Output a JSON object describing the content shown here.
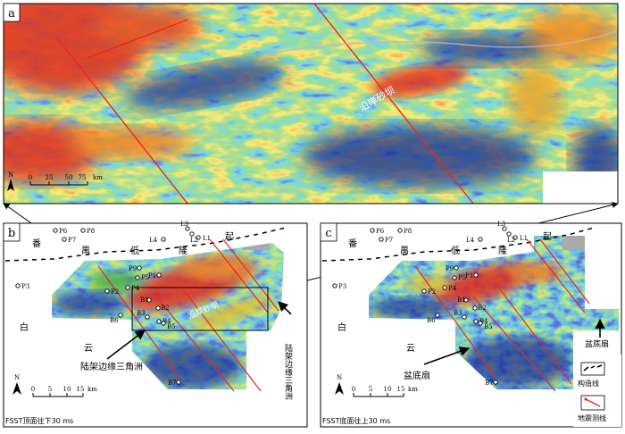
{
  "panel_a": {
    "label": "a",
    "scale": {
      "ticks": [
        "0",
        "25",
        "50",
        "75"
      ],
      "unit": "km"
    },
    "north": "N",
    "channel_label": "沿岸砂坝"
  },
  "panel_b": {
    "label": "b",
    "wells": [
      "P6",
      "P8",
      "P7",
      "P3",
      "P9",
      "P5",
      "P1",
      "P2",
      "P4",
      "B1",
      "B2",
      "B6",
      "B3",
      "B4",
      "B5",
      "B7",
      "L1",
      "L2",
      "L3",
      "L4"
    ],
    "region_chars": [
      "番",
      "禺",
      "低",
      "隆",
      "起",
      "白",
      "云"
    ],
    "annot_delta_left": "陆架边缘三角洲",
    "annot_delta_right": "陆架边缘三角洲",
    "channel_label": "沿岸砂坝",
    "scale": {
      "ticks": [
        "0",
        "5",
        "10",
        "15"
      ],
      "unit": "km"
    },
    "north": "N",
    "caption": "FSST顶面往下30 ms"
  },
  "panel_c": {
    "label": "c",
    "wells": [
      "P6",
      "P8",
      "P7",
      "P3",
      "P9",
      "P5",
      "P1",
      "P2",
      "P4",
      "B1",
      "B2",
      "B6",
      "B3",
      "B4",
      "B5",
      "B7",
      "L1",
      "L2",
      "L3",
      "L4"
    ],
    "region_chars": [
      "番",
      "禺",
      "低",
      "隆",
      "起",
      "白",
      "云"
    ],
    "annot_fan_left": "盆底扇",
    "annot_fan_right": "盆底扇",
    "scale": {
      "ticks": [
        "0",
        "5",
        "10",
        "15"
      ],
      "unit": "km"
    },
    "north": "N",
    "caption": "FSST底面往上30 ms",
    "legend": [
      {
        "symbol": "fault-dashes",
        "label": "构造线"
      },
      {
        "symbol": "seismic-line-red",
        "label": "地震测线"
      }
    ]
  },
  "colors": {
    "low": "#202a8c",
    "mid_blue": "#3a6fd0",
    "cyan": "#38c0d8",
    "green": "#4fae43",
    "yellow": "#e7d93a",
    "orange": "#ee8a20",
    "red": "#e02a1c",
    "seismic_line": "#e8281e",
    "frame": "#000000"
  }
}
